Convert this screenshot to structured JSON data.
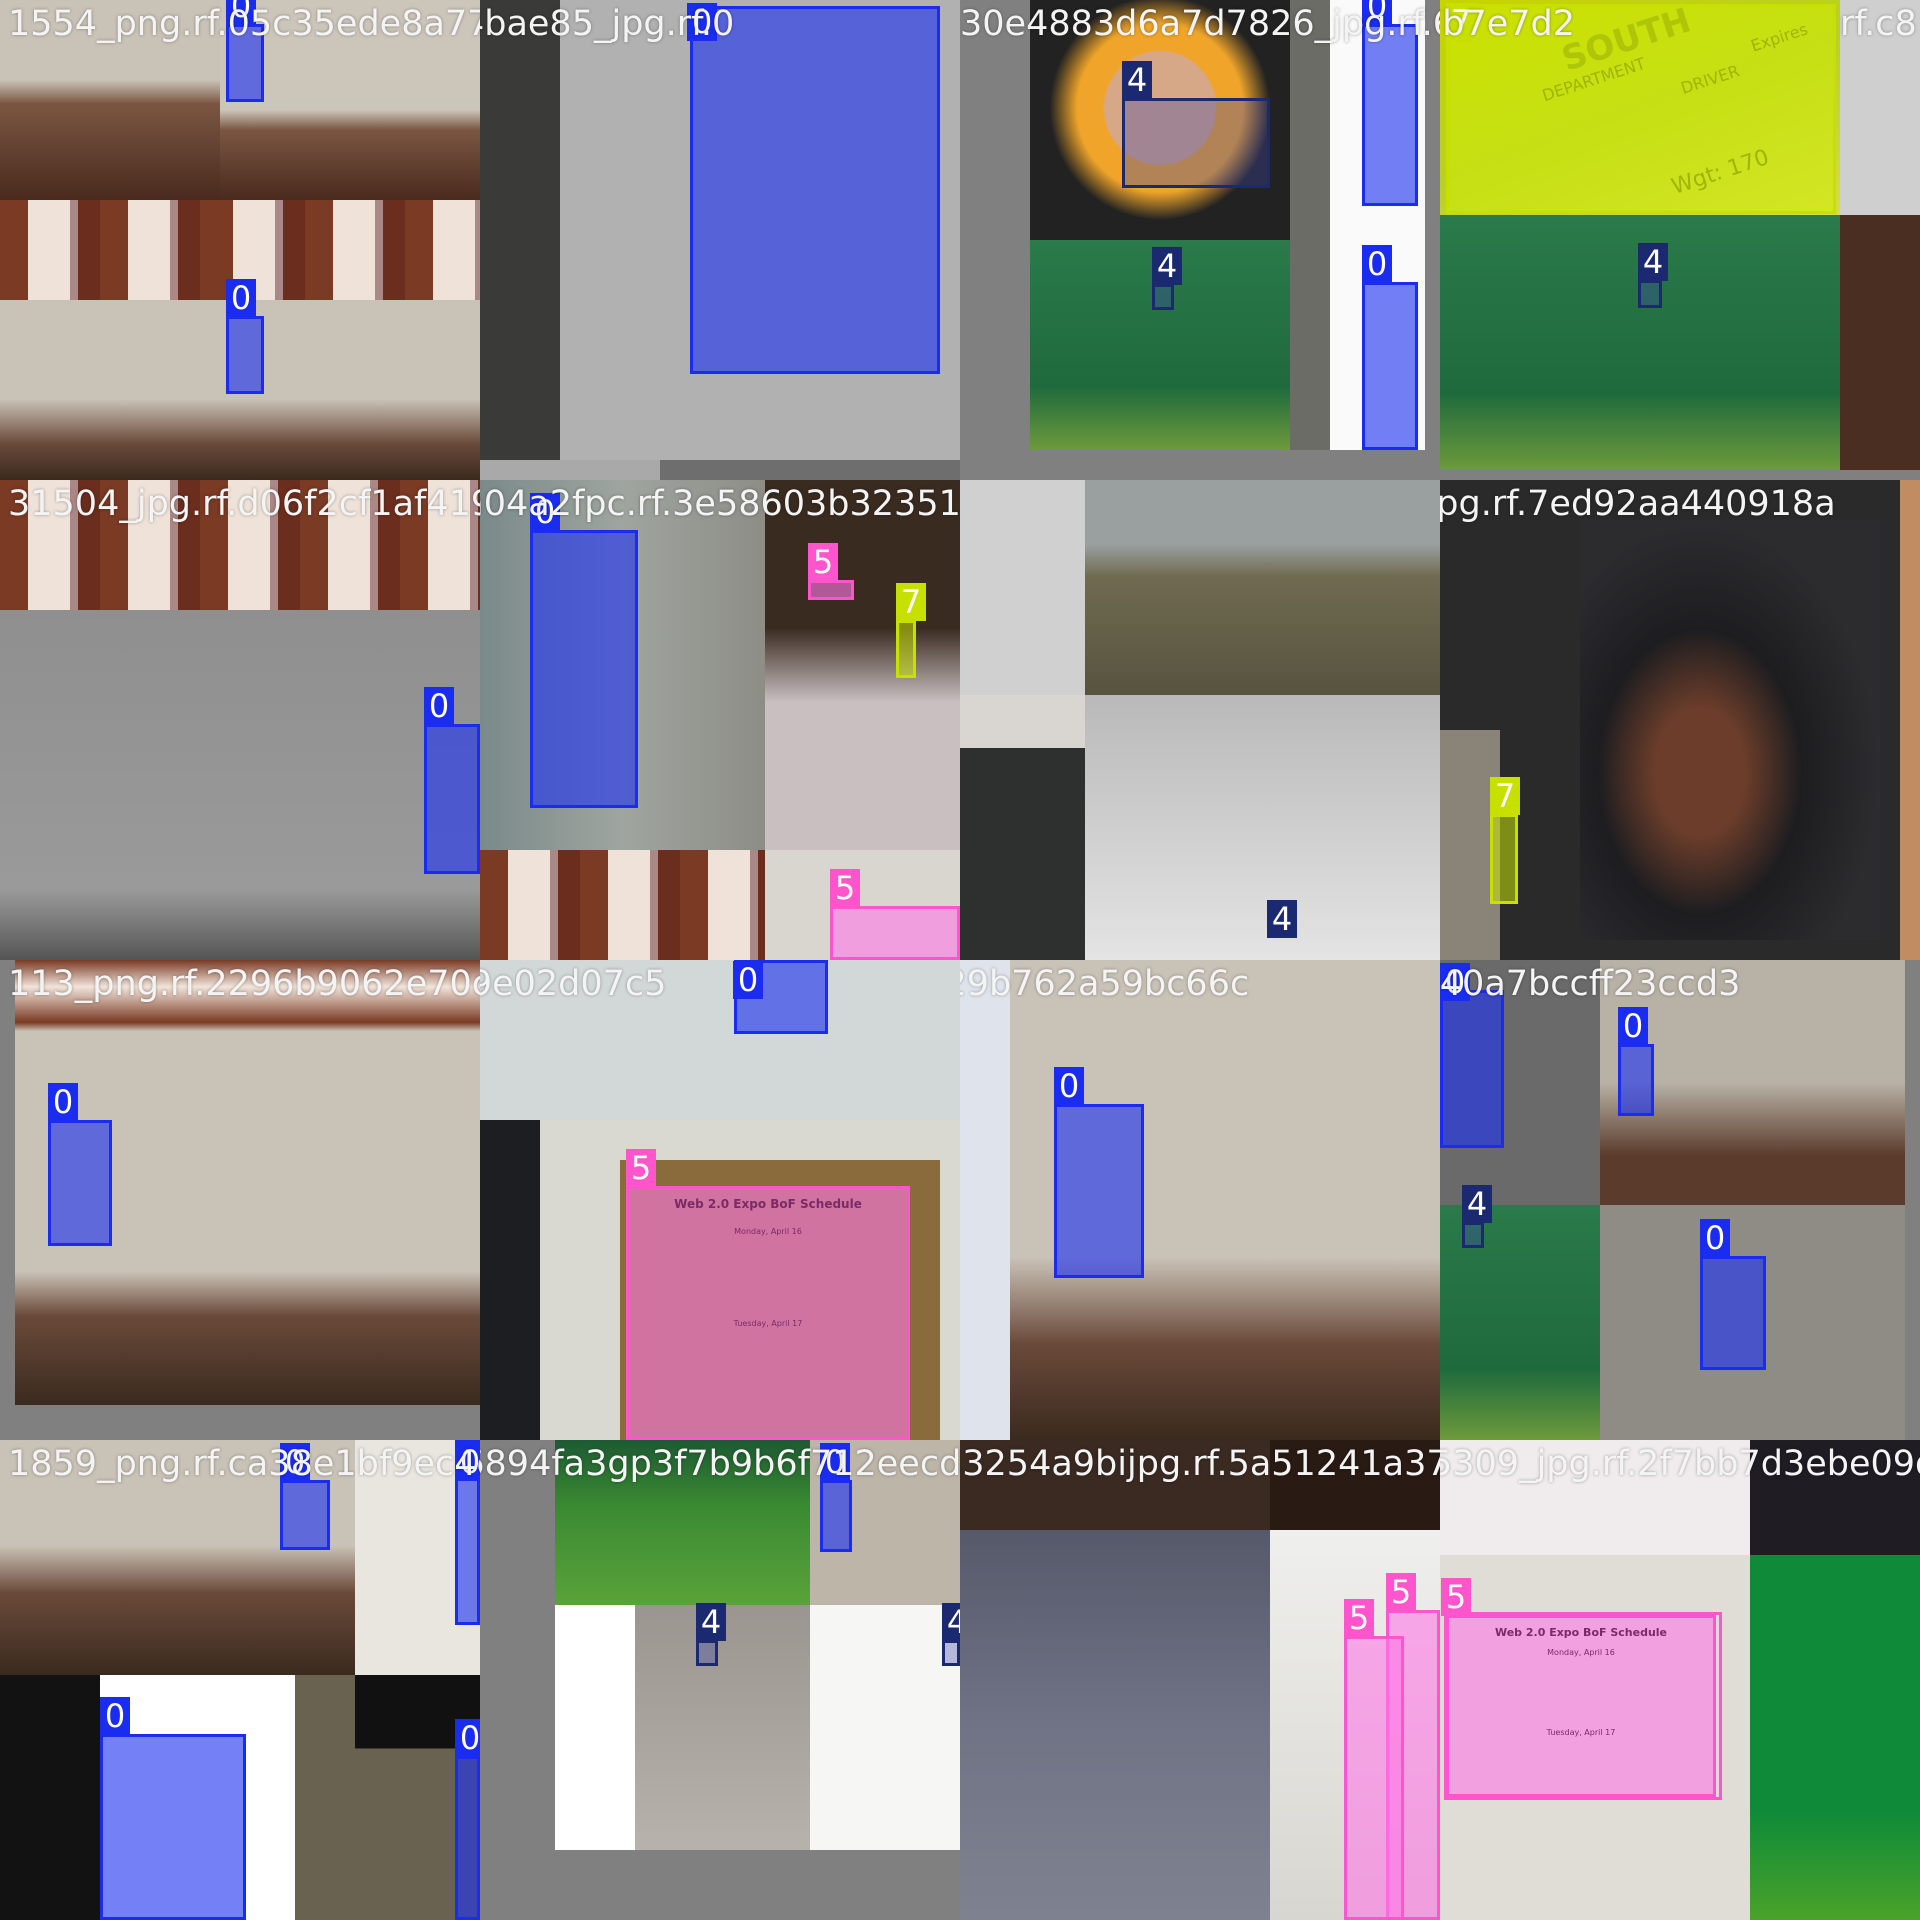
{
  "window_title": "Training batch mosaic with labels",
  "tiles": [
    {
      "filename": "1554_png.rf.05c35ede8a77c1ac9ab7c8c4bae85_jpg.rf.0",
      "labels": [
        "0",
        "0"
      ]
    },
    {
      "filename": "fac9ab7c8c4bae85_jpg.rf.0",
      "labels": [
        "0"
      ]
    },
    {
      "filename": "30e4883d6a7d7826_jpg.rf.6",
      "labels": [
        "0",
        "4",
        "4",
        "0"
      ]
    },
    {
      "filename": "7b7e7d2",
      "labels": [
        "7",
        "4"
      ]
    },
    {
      "filename": "rf.c8",
      "labels": []
    },
    {
      "filename": "31504_jpg.rf.d06f2cf1af41980",
      "labels": [
        "0"
      ]
    },
    {
      "filename": "8a04a2fpc.rf.3e58603b32351b0d28c36f6da7039e7222b",
      "labels": [
        "0",
        "5",
        "7",
        "5"
      ]
    },
    {
      "filename": "7848_jpg.rf.7ed92aa440918a",
      "labels": [
        "4"
      ]
    },
    {
      "filename": "",
      "labels": [
        "7"
      ]
    },
    {
      "filename": "113_png.rf.2296b9062e70c2824b61e4feba5",
      "labels": [
        "0"
      ]
    },
    {
      "filename": "7991ce9e02d07c5",
      "labels": [
        "0",
        "5"
      ]
    },
    {
      "filename": "pd29b762a59bc66c",
      "labels": [
        "0"
      ]
    },
    {
      "filename": "8f7e4f62040a7bccff23ccd3",
      "labels": [
        "0",
        "0",
        "4",
        "0"
      ]
    },
    {
      "filename": "1859_png.rf.ca38e1bf9ec4d",
      "labels": [
        "0",
        "0",
        "0",
        "0"
      ]
    },
    {
      "filename": "76894fa3gp3f7b9b6f712eecdb2a",
      "labels": [
        "0",
        "4",
        "4"
      ]
    },
    {
      "filename": "33254a9bijpg.rf.5a51241a3779",
      "labels": [
        "5",
        "5"
      ]
    },
    {
      "filename": "5309_jpg.rf.2f7bb7d3ebe09d5b",
      "labels": []
    }
  ],
  "poster": {
    "title": "Web 2.0 Expo BoF Schedule",
    "day1": "Monday, April 16",
    "day2": "Tuesday, April 17"
  },
  "license_text": [
    "SOUTH",
    "DEPARTMENT",
    "DRIVER",
    "Wgt: 170",
    "Expires"
  ],
  "colors": {
    "class0": "#1a2cf0",
    "class4": "#1b2a70",
    "class5": "#ff55cc",
    "class7": "#c8e000",
    "bg": "#808080"
  }
}
